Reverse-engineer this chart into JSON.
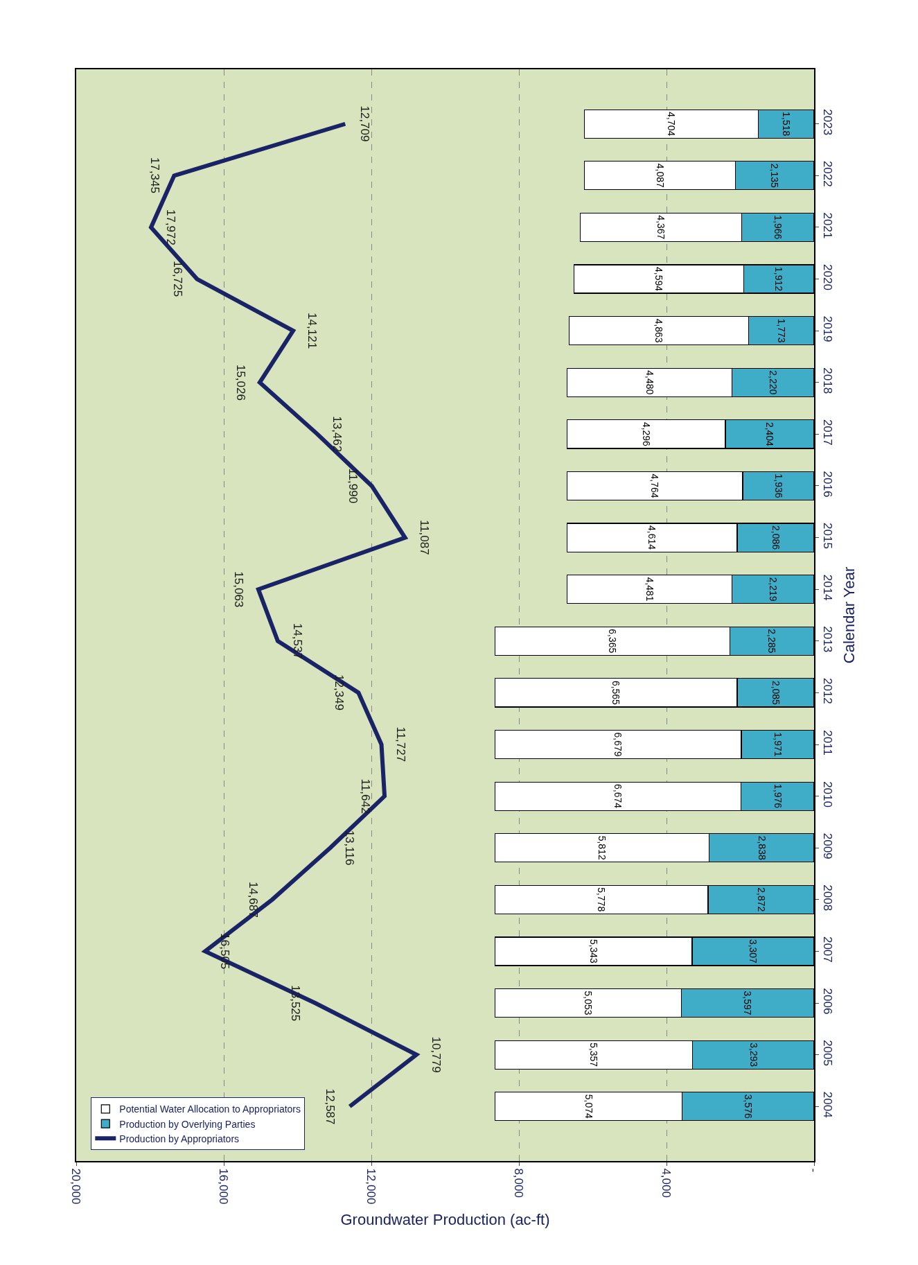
{
  "chart_data": {
    "type": "bar",
    "orientation": "horizontal",
    "stacked": true,
    "xlabel": "Groundwater Production (ac-ft)",
    "ylabel": "Calendar Year",
    "categories": [
      "2023",
      "2022",
      "2021",
      "2020",
      "2019",
      "2018",
      "2017",
      "2016",
      "2015",
      "2014",
      "2013",
      "2012",
      "2011",
      "2010",
      "2009",
      "2008",
      "2007",
      "2006",
      "2005",
      "2004"
    ],
    "series": [
      {
        "name": "Production by Overlying Parties",
        "color": "#3fadc8",
        "values": [
          1518,
          2135,
          1966,
          1912,
          1773,
          2220,
          2404,
          1936,
          2086,
          2219,
          2285,
          2085,
          1971,
          1976,
          2838,
          2872,
          3307,
          3597,
          3293,
          3576
        ],
        "value_labels": [
          "1,518",
          "2,135",
          "1,966",
          "1,912",
          "1,773",
          "2,220",
          "2,404",
          "1,936",
          "2,086",
          "2,219",
          "2,285",
          "2,085",
          "1,971",
          "1,976",
          "2,838",
          "2,872",
          "3,307",
          "3,597",
          "3,293",
          "3,576"
        ]
      },
      {
        "name": "Potential Water Allocation to Appropriators",
        "color": "#ffffff",
        "values": [
          4704,
          4087,
          4367,
          4594,
          4863,
          4480,
          4296,
          4764,
          4614,
          4481,
          6365,
          6565,
          6679,
          6674,
          5812,
          5778,
          5343,
          5053,
          5357,
          5074
        ],
        "value_labels": [
          "4,704",
          "4,087",
          "4,367",
          "4,594",
          "4,863",
          "4,480",
          "4,296",
          "4,764",
          "4,614",
          "4,481",
          "6,365",
          "6,565",
          "6,679",
          "6,674",
          "5,812",
          "5,778",
          "5,343",
          "5,053",
          "5,357",
          "5,074"
        ]
      },
      {
        "name": "Production by Appropriators",
        "type": "line",
        "color": "#1a2366",
        "values": [
          12709,
          17345,
          17972,
          16725,
          14121,
          15026,
          13462,
          11990,
          11087,
          15063,
          14537,
          12349,
          11727,
          11642,
          13116,
          14687,
          16505,
          13525,
          10779,
          12587
        ],
        "value_labels": [
          "12,709",
          "17,345",
          "17,972",
          "16,725",
          "14,121",
          "15,026",
          "13,462",
          "11,990",
          "11,087",
          "15,063",
          "14,537",
          "12,349",
          "11,727",
          "11,642",
          "13,116",
          "14,687",
          "16,505",
          "13,525",
          "10,779",
          "12,587"
        ]
      }
    ],
    "xlim": [
      20000,
      0
    ],
    "xticks": [
      {
        "value": 20000,
        "label": "20,000"
      },
      {
        "value": 16000,
        "label": "16,000"
      },
      {
        "value": 12000,
        "label": "12,000"
      },
      {
        "value": 8000,
        "label": "8,000"
      },
      {
        "value": 4000,
        "label": "4,000"
      },
      {
        "value": 0,
        "label": "-"
      }
    ],
    "grid": "x",
    "legend": "bottom left",
    "marker": "none",
    "line_style": "solid"
  }
}
